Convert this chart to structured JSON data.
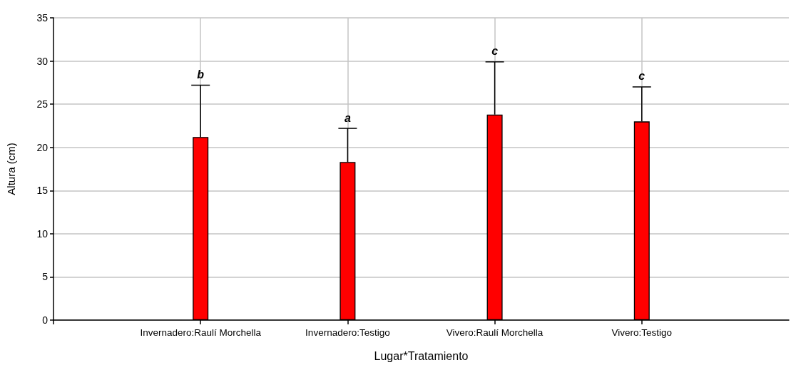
{
  "chart_data": {
    "type": "bar",
    "xlabel": "Lugar*Tratamiento",
    "ylabel": "Altura (cm)",
    "categories": [
      "Invernadero:Raulí Morchella",
      "Invernadero:Testigo",
      "Vivero:Raulí Morchella",
      "Vivero:Testigo"
    ],
    "values": [
      21.2,
      18.3,
      23.8,
      23.0
    ],
    "color": "#ff0000",
    "errors": [
      [
        21.2,
        27.2
      ],
      [
        18.3,
        22.2
      ],
      [
        23.8,
        29.9
      ],
      [
        23.0,
        27.0
      ]
    ],
    "annotations": [
      {
        "text": "b",
        "x": "Invernadero:Raulí Morchella",
        "y": 27.2
      },
      {
        "text": "a",
        "x": "Invernadero:Testigo",
        "y": 22.2
      },
      {
        "text": "c",
        "x": "Vivero:Raulí Morchella",
        "y": 29.9
      },
      {
        "text": "c",
        "x": "Vivero:Testigo",
        "y": 27.0
      }
    ],
    "ylim": [
      0,
      35
    ],
    "yticks": [
      0,
      5,
      10,
      15,
      20,
      25,
      30,
      35
    ],
    "grid": true
  }
}
